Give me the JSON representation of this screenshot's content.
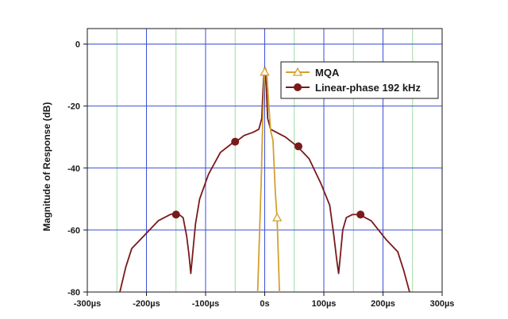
{
  "chart_data": {
    "type": "line",
    "title": "",
    "xlabel": "",
    "ylabel": "Magnitude of Response (dB)",
    "xlim": [
      -300,
      300
    ],
    "ylim": [
      -80,
      5
    ],
    "x_unit": "µs",
    "x_ticks": [
      -300,
      -200,
      -100,
      0,
      100,
      200,
      300
    ],
    "x_tick_labels": [
      "-300µs",
      "-200µs",
      "-100µs",
      "0s",
      "100µs",
      "200µs",
      "300µs"
    ],
    "y_ticks": [
      0,
      -20,
      -40,
      -60,
      -80
    ],
    "y_tick_labels": [
      "0",
      "-20",
      "-40",
      "-60",
      "-80"
    ],
    "grid": {
      "major": true,
      "major_color": "#3b4fd6",
      "minor": true,
      "minor_color": "#9fdc9f"
    },
    "legend_position": "top-right",
    "series": [
      {
        "name": "MQA",
        "color": "#d4a030",
        "marker": "open-triangle",
        "x": [
          -12,
          -6,
          -3,
          -1,
          0,
          2,
          4,
          7,
          10,
          14,
          18,
          21,
          25
        ],
        "y": [
          -80,
          -45,
          -22,
          -12,
          -9,
          -8,
          -11,
          -20,
          -28,
          -31,
          -48,
          -56,
          -80
        ],
        "marker_points": [
          {
            "x": 0,
            "y": -9
          },
          {
            "x": 21,
            "y": -56
          }
        ]
      },
      {
        "name": "Linear-phase 192 kHz",
        "color": "#7a1a1a",
        "marker": "filled-circle",
        "x": [
          -245,
          -235,
          -225,
          -205,
          -180,
          -160,
          -148,
          -138,
          -132,
          -128,
          -125,
          -122,
          -117,
          -110,
          -95,
          -75,
          -55,
          -45,
          -35,
          -20,
          -10,
          -5,
          -3,
          -1,
          0,
          1,
          3,
          5,
          10,
          20,
          35,
          45,
          55,
          75,
          95,
          110,
          117,
          122,
          125,
          128,
          132,
          138,
          148,
          160,
          180,
          205,
          225,
          235,
          245
        ],
        "y": [
          -80,
          -72,
          -66,
          -62,
          -57,
          -55,
          -54.5,
          -56,
          -62,
          -68,
          -74,
          -68,
          -58,
          -50,
          -42,
          -35,
          -32,
          -31,
          -29.5,
          -28.5,
          -27.5,
          -24,
          -15,
          -9,
          -7.5,
          -9,
          -15,
          -24,
          -27.5,
          -28.5,
          -30,
          -31.5,
          -33,
          -37,
          -45,
          -52,
          -62,
          -70,
          -74,
          -68,
          -60,
          -56,
          -55,
          -55,
          -57,
          -63,
          -67,
          -73,
          -80
        ],
        "marker_points": [
          {
            "x": -150,
            "y": -55
          },
          {
            "x": -50,
            "y": -31.5
          },
          {
            "x": 57,
            "y": -33
          },
          {
            "x": 162,
            "y": -55
          }
        ]
      }
    ]
  }
}
